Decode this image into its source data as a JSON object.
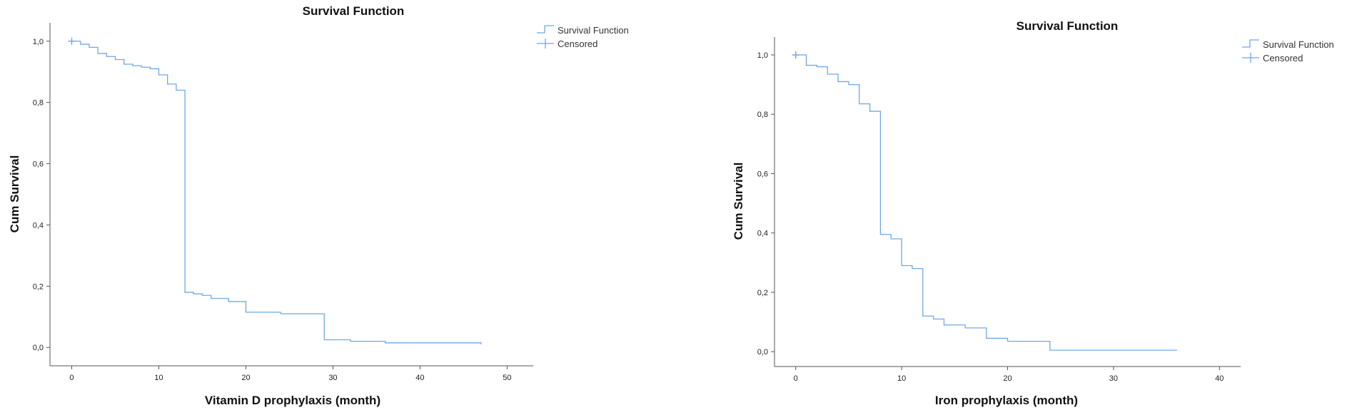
{
  "chart_data": [
    {
      "type": "line",
      "title": "Survival Function",
      "xlabel": "Vitamin D prophylaxis (month)",
      "ylabel": "Cum Survival",
      "xlim": [
        -2.5,
        53
      ],
      "ylim": [
        -0.06,
        1.06
      ],
      "xticks": [
        0,
        10,
        20,
        30,
        40,
        50
      ],
      "xtick_labels": [
        "0",
        "10",
        "20",
        "30",
        "40",
        "50"
      ],
      "yticks": [
        0,
        0.2,
        0.4,
        0.6,
        0.8,
        1.0
      ],
      "ytick_labels": [
        "0,0",
        "0,2",
        "0,4",
        "0,6",
        "0,8",
        "1,0"
      ],
      "legend": [
        "Survival Function",
        "Censored"
      ],
      "legend_position": "top-right, outside plot",
      "grid": false,
      "line_color": "#6fa8e8",
      "series": [
        {
          "name": "Survival Function",
          "step": true,
          "x": [
            0,
            1,
            2,
            3,
            4,
            5,
            6,
            7,
            8,
            9,
            10,
            11,
            12,
            13,
            14,
            15,
            16,
            18,
            20,
            24,
            29,
            32,
            36,
            47
          ],
          "y": [
            1.0,
            0.99,
            0.98,
            0.96,
            0.95,
            0.94,
            0.925,
            0.92,
            0.915,
            0.91,
            0.89,
            0.86,
            0.84,
            0.18,
            0.175,
            0.17,
            0.16,
            0.15,
            0.115,
            0.11,
            0.025,
            0.02,
            0.015,
            0.01
          ]
        },
        {
          "name": "Censored",
          "x": [
            0
          ],
          "y": [
            1.0
          ]
        }
      ]
    },
    {
      "type": "line",
      "title": "Survival Function",
      "xlabel": "Iron prophylaxis (month)",
      "ylabel": "Cum Survival",
      "xlim": [
        -2,
        42
      ],
      "ylim": [
        -0.05,
        1.06
      ],
      "xticks": [
        0,
        10,
        20,
        30,
        40
      ],
      "xtick_labels": [
        "0",
        "10",
        "20",
        "30",
        "40"
      ],
      "yticks": [
        0,
        0.2,
        0.4,
        0.6,
        0.8,
        1.0
      ],
      "ytick_labels": [
        "0,0",
        "0,2",
        "0,4",
        "0,6",
        "0,8",
        "1,0"
      ],
      "legend": [
        "Survival Function",
        "Censored"
      ],
      "legend_position": "top-right, outside plot",
      "grid": false,
      "line_color": "#6fa8e8",
      "series": [
        {
          "name": "Survival Function",
          "step": true,
          "x": [
            0,
            1,
            2,
            3,
            4,
            5,
            6,
            7,
            8,
            9,
            10,
            11,
            12,
            13,
            14,
            16,
            18,
            20,
            24,
            36
          ],
          "y": [
            1.0,
            0.965,
            0.96,
            0.935,
            0.91,
            0.9,
            0.835,
            0.81,
            0.395,
            0.38,
            0.29,
            0.28,
            0.12,
            0.11,
            0.09,
            0.08,
            0.045,
            0.035,
            0.005,
            0.005
          ]
        },
        {
          "name": "Censored",
          "x": [
            0
          ],
          "y": [
            1.0
          ]
        }
      ]
    }
  ]
}
